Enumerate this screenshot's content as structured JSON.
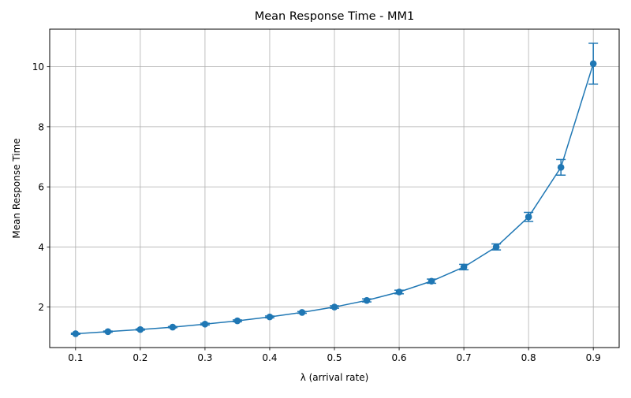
{
  "chart_data": {
    "type": "line",
    "title": "Mean Response Time - MM1",
    "xlabel": "λ (arrival rate)",
    "ylabel": "Mean Response Time",
    "xlim": [
      0.06,
      0.94
    ],
    "ylim": [
      0.65,
      11.25
    ],
    "xticks": [
      0.1,
      0.2,
      0.3,
      0.4,
      0.5,
      0.6,
      0.7,
      0.8,
      0.9
    ],
    "yticks": [
      2,
      4,
      6,
      8,
      10
    ],
    "grid": true,
    "color": "#1f77b4",
    "x": [
      0.1,
      0.15,
      0.2,
      0.25,
      0.3,
      0.35,
      0.4,
      0.45,
      0.5,
      0.55,
      0.6,
      0.65,
      0.7,
      0.75,
      0.8,
      0.85,
      0.9
    ],
    "y": [
      1.11,
      1.18,
      1.25,
      1.33,
      1.43,
      1.54,
      1.67,
      1.82,
      2.0,
      2.22,
      2.5,
      2.86,
      3.33,
      4.0,
      5.0,
      6.65,
      10.1
    ],
    "yerr": [
      0.02,
      0.02,
      0.02,
      0.02,
      0.03,
      0.03,
      0.03,
      0.03,
      0.04,
      0.05,
      0.06,
      0.07,
      0.09,
      0.1,
      0.15,
      0.26,
      0.68
    ]
  }
}
